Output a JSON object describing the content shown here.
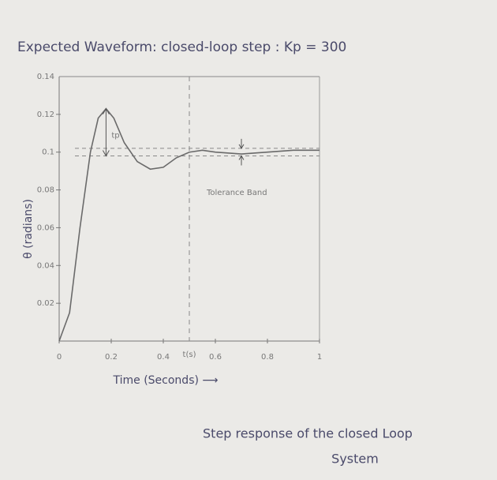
{
  "chart_data": {
    "type": "line",
    "title": "Expected Waveform: closed-loop step : Kp = 300",
    "x_label": "Time (Seconds) ⟶",
    "y_label": "θ (radians)",
    "caption": [
      "Step response of the closed Loop",
      "System"
    ],
    "annotations": {
      "tolerance": "Tolerance Band",
      "marker": "t(s)",
      "overshoot": "tp"
    },
    "x": [
      0,
      0.04,
      0.08,
      0.12,
      0.15,
      0.18,
      0.21,
      0.25,
      0.3,
      0.35,
      0.4,
      0.45,
      0.5,
      0.55,
      0.6,
      0.7,
      0.8,
      0.9,
      1
    ],
    "series": [
      {
        "color": "#6a6a6a",
        "values": [
          0,
          0.015,
          0.06,
          0.1,
          0.118,
          0.123,
          0.118,
          0.105,
          0.095,
          0.091,
          0.092,
          0.097,
          0.1,
          0.101,
          0.1,
          0.099,
          0.1,
          0.101,
          0.101
        ]
      }
    ],
    "tolerance_band": [
      0.098,
      0.102
    ],
    "marker_x": 0.5,
    "xlim": [
      0,
      1
    ],
    "ylim": [
      0,
      0.14
    ],
    "xticks": [
      0,
      0.2,
      0.4,
      0.6,
      0.8,
      1
    ],
    "yticks": [
      0.02,
      0.04,
      0.06,
      0.08,
      0.1,
      0.12,
      0.14
    ]
  }
}
